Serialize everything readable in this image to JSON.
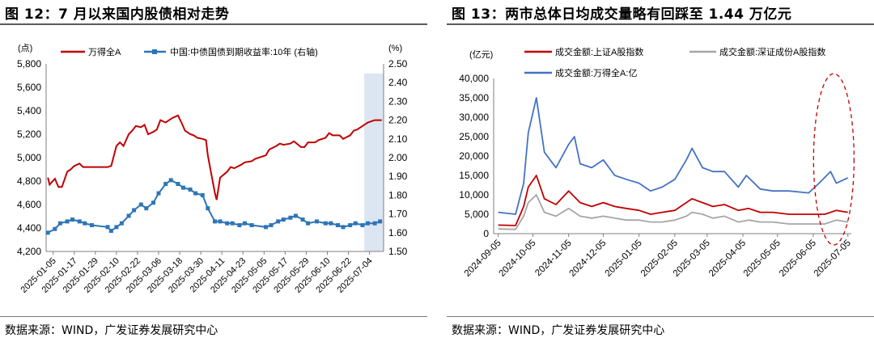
{
  "left": {
    "title": "图 12：7 月以来国内股债相对走势",
    "source": "数据来源：WIND，广发证券发展研究中心"
  },
  "right": {
    "title": "图 13：两市总体日均成交量略有回踩至 1.44 万亿元",
    "source": "数据来源：WIND，广发证券发展研究中心"
  },
  "chart_data": [
    {
      "type": "line",
      "yunit_left": "(点)",
      "yunit_right": "(%)",
      "y_left_ticks": [
        "4,200",
        "4,400",
        "4,600",
        "4,800",
        "5,000",
        "5,200",
        "5,400",
        "5,600",
        "5,800"
      ],
      "y_left_range": [
        4200,
        5800
      ],
      "y_right_ticks": [
        "1.50",
        "1.60",
        "1.70",
        "1.80",
        "1.90",
        "2.00",
        "2.10",
        "2.20",
        "2.30",
        "2.40",
        "2.50"
      ],
      "y_right_range": [
        1.5,
        2.5
      ],
      "x_ticks": [
        "2025-01-05",
        "2025-01-17",
        "2025-01-29",
        "2025-02-10",
        "2025-02-22",
        "2025-03-06",
        "2025-03-18",
        "2025-03-30",
        "2025-04-11",
        "2025-04-23",
        "2025-05-05",
        "2025-05-17",
        "2025-05-29",
        "2025-06-10",
        "2025-06-22",
        "2025-07-04"
      ],
      "highlight_from": "2025-07-01",
      "series": [
        {
          "name": "万得全A",
          "axis": "left",
          "color": "#c00000",
          "x": [
            "2025-01-02",
            "2025-01-03",
            "2025-01-06",
            "2025-01-08",
            "2025-01-10",
            "2025-01-13",
            "2025-01-15",
            "2025-01-17",
            "2025-01-20",
            "2025-01-22",
            "2025-01-24",
            "2025-01-27",
            "2025-02-05",
            "2025-02-07",
            "2025-02-10",
            "2025-02-12",
            "2025-02-14",
            "2025-02-17",
            "2025-02-19",
            "2025-02-21",
            "2025-02-24",
            "2025-02-26",
            "2025-02-28",
            "2025-03-03",
            "2025-03-05",
            "2025-03-07",
            "2025-03-10",
            "2025-03-12",
            "2025-03-14",
            "2025-03-17",
            "2025-03-19",
            "2025-03-21",
            "2025-03-24",
            "2025-03-26",
            "2025-03-28",
            "2025-03-31",
            "2025-04-02",
            "2025-04-03",
            "2025-04-07",
            "2025-04-08",
            "2025-04-10",
            "2025-04-14",
            "2025-04-16",
            "2025-04-18",
            "2025-04-22",
            "2025-04-24",
            "2025-04-28",
            "2025-04-30",
            "2025-05-06",
            "2025-05-08",
            "2025-05-12",
            "2025-05-14",
            "2025-05-16",
            "2025-05-20",
            "2025-05-22",
            "2025-05-26",
            "2025-05-28",
            "2025-05-30",
            "2025-06-03",
            "2025-06-05",
            "2025-06-09",
            "2025-06-11",
            "2025-06-13",
            "2025-06-17",
            "2025-06-19",
            "2025-06-23",
            "2025-06-25",
            "2025-06-27",
            "2025-07-01",
            "2025-07-03",
            "2025-07-07",
            "2025-07-09",
            "2025-07-11"
          ],
          "values": [
            4830,
            4770,
            4820,
            4750,
            4750,
            4880,
            4900,
            4930,
            4950,
            4920,
            4920,
            4920,
            4920,
            4930,
            5100,
            5130,
            5100,
            5200,
            5230,
            5270,
            5260,
            5280,
            5200,
            5220,
            5240,
            5320,
            5300,
            5320,
            5340,
            5360,
            5300,
            5230,
            5200,
            5190,
            5170,
            5160,
            5150,
            5020,
            4700,
            4640,
            4830,
            4880,
            4920,
            4910,
            4940,
            4960,
            4970,
            4990,
            5020,
            5070,
            5100,
            5120,
            5110,
            5120,
            5140,
            5090,
            5090,
            5130,
            5130,
            5150,
            5170,
            5210,
            5190,
            5190,
            5160,
            5190,
            5230,
            5240,
            5280,
            5300,
            5320,
            5320,
            5320
          ]
        },
        {
          "name": "中国:中债国债到期收益率:10年 (右轴)",
          "axis": "right",
          "color": "#2e75b6",
          "x": [
            "2025-01-02",
            "2025-01-06",
            "2025-01-09",
            "2025-01-13",
            "2025-01-16",
            "2025-01-20",
            "2025-01-23",
            "2025-01-27",
            "2025-02-05",
            "2025-02-07",
            "2025-02-10",
            "2025-02-13",
            "2025-02-17",
            "2025-02-20",
            "2025-02-24",
            "2025-02-27",
            "2025-03-03",
            "2025-03-06",
            "2025-03-10",
            "2025-03-13",
            "2025-03-17",
            "2025-03-20",
            "2025-03-24",
            "2025-03-27",
            "2025-03-31",
            "2025-04-03",
            "2025-04-07",
            "2025-04-10",
            "2025-04-14",
            "2025-04-17",
            "2025-04-21",
            "2025-04-24",
            "2025-04-28",
            "2025-05-06",
            "2025-05-09",
            "2025-05-13",
            "2025-05-16",
            "2025-05-20",
            "2025-05-23",
            "2025-05-27",
            "2025-05-30",
            "2025-06-04",
            "2025-06-09",
            "2025-06-12",
            "2025-06-16",
            "2025-06-19",
            "2025-06-23",
            "2025-06-26",
            "2025-06-30",
            "2025-07-03",
            "2025-07-07",
            "2025-07-10"
          ],
          "values": [
            1.6,
            1.62,
            1.65,
            1.66,
            1.67,
            1.66,
            1.65,
            1.64,
            1.63,
            1.61,
            1.63,
            1.65,
            1.69,
            1.72,
            1.75,
            1.73,
            1.76,
            1.81,
            1.86,
            1.88,
            1.86,
            1.84,
            1.83,
            1.81,
            1.8,
            1.73,
            1.66,
            1.66,
            1.65,
            1.65,
            1.64,
            1.65,
            1.64,
            1.63,
            1.64,
            1.66,
            1.67,
            1.68,
            1.69,
            1.67,
            1.65,
            1.66,
            1.65,
            1.65,
            1.64,
            1.63,
            1.64,
            1.65,
            1.64,
            1.65,
            1.65,
            1.66
          ]
        }
      ]
    },
    {
      "type": "line",
      "yunit": "(亿元)",
      "y_ticks": [
        "0",
        "5,000",
        "10,000",
        "15,000",
        "20,000",
        "25,000",
        "30,000",
        "35,000",
        "40,000"
      ],
      "y_range": [
        0,
        40000
      ],
      "x_ticks": [
        "2024-09-05",
        "2024-10-05",
        "2024-11-05",
        "2024-12-05",
        "2025-01-05",
        "2025-02-05",
        "2025-03-05",
        "2025-04-05",
        "2025-05-05",
        "2025-06-05",
        "2025-07-05"
      ],
      "annotation": "dashed ellipse highlighting June–July 2025",
      "series": [
        {
          "name": "成交金额:上证A股指数",
          "color": "#c00000",
          "x": [
            "2024-09-05",
            "2024-09-20",
            "2024-09-27",
            "2024-10-01",
            "2024-10-08",
            "2024-10-15",
            "2024-10-25",
            "2024-11-05",
            "2024-11-15",
            "2024-11-25",
            "2024-12-05",
            "2024-12-15",
            "2024-12-25",
            "2025-01-05",
            "2025-01-15",
            "2025-01-25",
            "2025-02-05",
            "2025-02-15",
            "2025-02-20",
            "2025-03-01",
            "2025-03-10",
            "2025-03-20",
            "2025-04-01",
            "2025-04-10",
            "2025-04-20",
            "2025-05-01",
            "2025-05-15",
            "2025-06-01",
            "2025-06-15",
            "2025-06-25",
            "2025-07-05"
          ],
          "values": [
            2200,
            2100,
            7000,
            12000,
            15000,
            9000,
            7500,
            11000,
            8000,
            7000,
            8000,
            7000,
            6500,
            6000,
            5000,
            5500,
            6000,
            8000,
            9000,
            8000,
            7000,
            7500,
            6000,
            6500,
            5500,
            5500,
            5000,
            5000,
            5000,
            6000,
            5500
          ]
        },
        {
          "name": "成交金额:深证成份A股指数",
          "color": "#a6a6a6",
          "x": [
            "2024-09-05",
            "2024-09-20",
            "2024-09-27",
            "2024-10-01",
            "2024-10-08",
            "2024-10-15",
            "2024-10-25",
            "2024-11-05",
            "2024-11-15",
            "2024-11-25",
            "2024-12-05",
            "2024-12-15",
            "2024-12-25",
            "2025-01-05",
            "2025-01-15",
            "2025-01-25",
            "2025-02-05",
            "2025-02-15",
            "2025-02-20",
            "2025-03-01",
            "2025-03-10",
            "2025-03-20",
            "2025-04-01",
            "2025-04-10",
            "2025-04-20",
            "2025-05-01",
            "2025-05-15",
            "2025-06-01",
            "2025-06-15",
            "2025-06-25",
            "2025-07-05"
          ],
          "values": [
            1200,
            1100,
            4500,
            8000,
            10000,
            5500,
            4500,
            6500,
            4500,
            4000,
            4500,
            4000,
            3500,
            3500,
            3000,
            3000,
            3500,
            4500,
            5500,
            5000,
            4000,
            4500,
            3000,
            3500,
            3000,
            3000,
            2500,
            2500,
            2500,
            3500,
            3000
          ]
        },
        {
          "name": "成交金额:万得全A:亿",
          "color": "#4472c4",
          "x": [
            "2024-09-05",
            "2024-09-20",
            "2024-09-27",
            "2024-10-01",
            "2024-10-08",
            "2024-10-15",
            "2024-10-25",
            "2024-11-05",
            "2024-11-10",
            "2024-11-15",
            "2024-11-25",
            "2024-12-05",
            "2024-12-15",
            "2024-12-25",
            "2025-01-05",
            "2025-01-15",
            "2025-01-25",
            "2025-02-05",
            "2025-02-15",
            "2025-02-20",
            "2025-03-01",
            "2025-03-10",
            "2025-03-20",
            "2025-04-01",
            "2025-04-08",
            "2025-04-20",
            "2025-05-01",
            "2025-05-15",
            "2025-06-01",
            "2025-06-10",
            "2025-06-20",
            "2025-06-25",
            "2025-07-05"
          ],
          "values": [
            5500,
            5000,
            13000,
            26000,
            35000,
            21000,
            17000,
            23000,
            25000,
            18000,
            17000,
            19000,
            15000,
            14000,
            13000,
            11000,
            12000,
            14000,
            19000,
            22000,
            17000,
            16000,
            16000,
            12000,
            15000,
            11500,
            11000,
            11000,
            10500,
            13000,
            16000,
            13000,
            14400
          ]
        }
      ]
    }
  ]
}
